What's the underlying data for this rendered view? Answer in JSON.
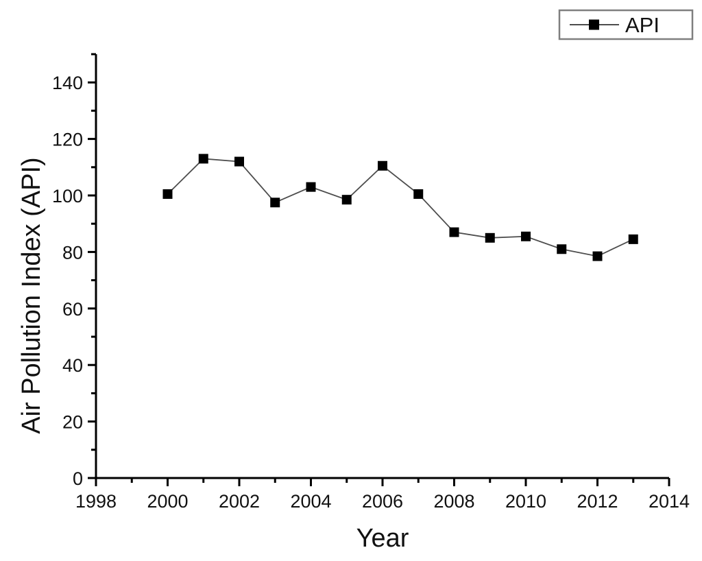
{
  "chart_data": {
    "type": "line",
    "title": "",
    "xlabel": "Year",
    "ylabel": "Air Pollution Index (API)",
    "x": [
      2000,
      2001,
      2002,
      2003,
      2004,
      2005,
      2006,
      2007,
      2008,
      2009,
      2010,
      2011,
      2012,
      2013
    ],
    "series": [
      {
        "name": "API",
        "values": [
          100.5,
          113,
          112,
          97.5,
          103,
          98.5,
          110.5,
          100.5,
          87,
          85,
          85.5,
          81,
          78.5,
          84.5
        ]
      }
    ],
    "xlim": [
      1998,
      2014
    ],
    "ylim": [
      0,
      150
    ],
    "x_major_ticks": [
      1998,
      2000,
      2002,
      2004,
      2006,
      2008,
      2010,
      2012,
      2014
    ],
    "x_minor_ticks": [
      1999,
      2001,
      2003,
      2005,
      2007,
      2009,
      2011,
      2013
    ],
    "y_major_ticks": [
      0,
      20,
      40,
      60,
      80,
      100,
      120,
      140
    ],
    "y_minor_ticks": [
      10,
      30,
      50,
      70,
      90,
      110,
      130,
      150
    ],
    "grid": false,
    "marker": "filled-square",
    "legend": {
      "position": "top-right",
      "entries": [
        "API"
      ]
    },
    "colors": {
      "line": "#4d4d4d",
      "marker": "#000000",
      "axis": "#000000",
      "text": "#111111",
      "legend_border": "#7f7f7f",
      "background": "#ffffff"
    }
  }
}
